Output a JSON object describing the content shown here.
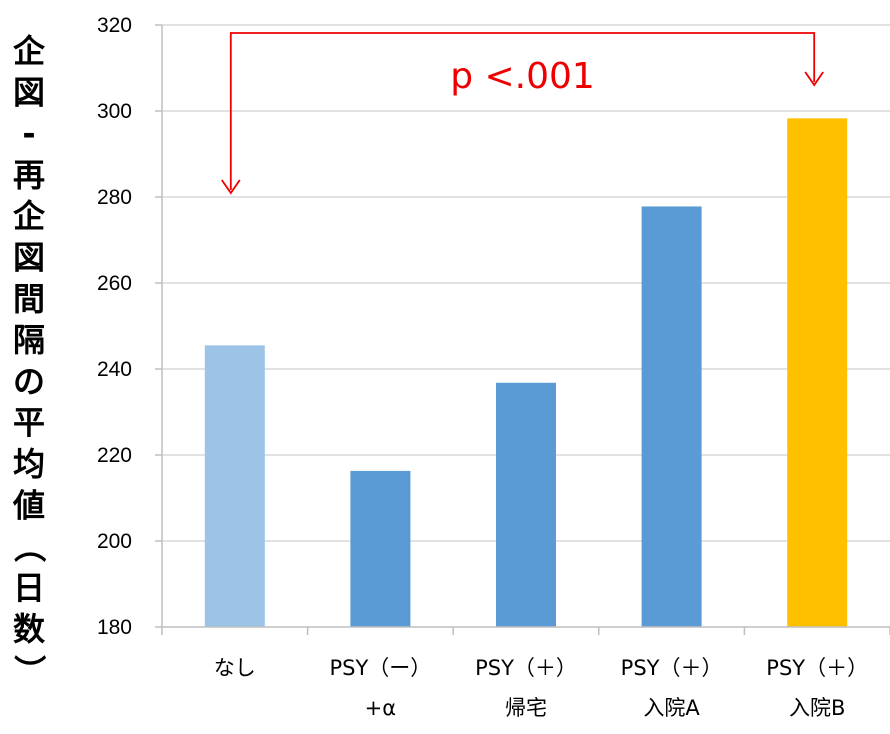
{
  "chart_data": {
    "type": "bar",
    "ylabel": "企図-再企図間隔の平均値（日数）",
    "ylim": [
      180,
      320
    ],
    "yticks": [
      180,
      200,
      220,
      240,
      260,
      280,
      300,
      320
    ],
    "categories": [
      [
        "なし"
      ],
      [
        "PSY（ー）",
        "+α"
      ],
      [
        "PSY（＋）",
        "帰宅"
      ],
      [
        "PSY（＋）",
        "入院A"
      ],
      [
        "PSY（＋）",
        "入院B"
      ]
    ],
    "values": [
      245.5,
      216.3,
      236.8,
      277.8,
      298.3
    ],
    "bar_colors": [
      "#9dc3e6",
      "#5b9bd5",
      "#5b9bd5",
      "#5b9bd5",
      "#ffc000"
    ],
    "grid": true,
    "annotation": {
      "text": "p <.001",
      "from_category": 0,
      "to_category": 4,
      "color": "#ee0000"
    }
  }
}
